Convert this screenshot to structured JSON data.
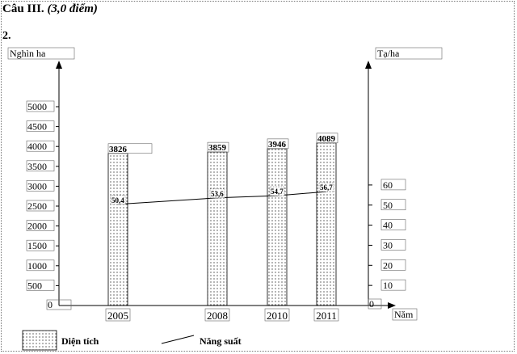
{
  "heading": {
    "title": "Câu III.",
    "points": "(3,0 điểm)"
  },
  "part": "2.",
  "chart_data": {
    "type": "bar",
    "categories": [
      "2005",
      "2008",
      "2010",
      "2011"
    ],
    "series": [
      {
        "name": "Diện tích",
        "type": "bar",
        "axis": "left",
        "values": [
          3826,
          3859,
          3946,
          4089
        ],
        "labels": [
          "3826",
          "3859",
          "3946",
          "4089"
        ]
      },
      {
        "name": "Năng suất",
        "type": "line",
        "axis": "right",
        "values": [
          50.4,
          53.6,
          54.7,
          56.7
        ],
        "labels": [
          "50,4",
          "53,6",
          "54,7",
          "56,7"
        ]
      }
    ],
    "y_left": {
      "label": "Nghìn ha",
      "ticks": [
        "0",
        "500",
        "1000",
        "1500",
        "2000",
        "2500",
        "3000",
        "3500",
        "4000",
        "4500",
        "5000"
      ],
      "min": 0,
      "max": 5000
    },
    "y_right": {
      "label": "Tạ/ha",
      "ticks": [
        "0",
        "10",
        "20",
        "30",
        "40",
        "50",
        "60"
      ],
      "min": 0,
      "max": 60
    },
    "xlabel": "Năm",
    "legend": {
      "placement": "bottom-left"
    },
    "grid": false
  }
}
